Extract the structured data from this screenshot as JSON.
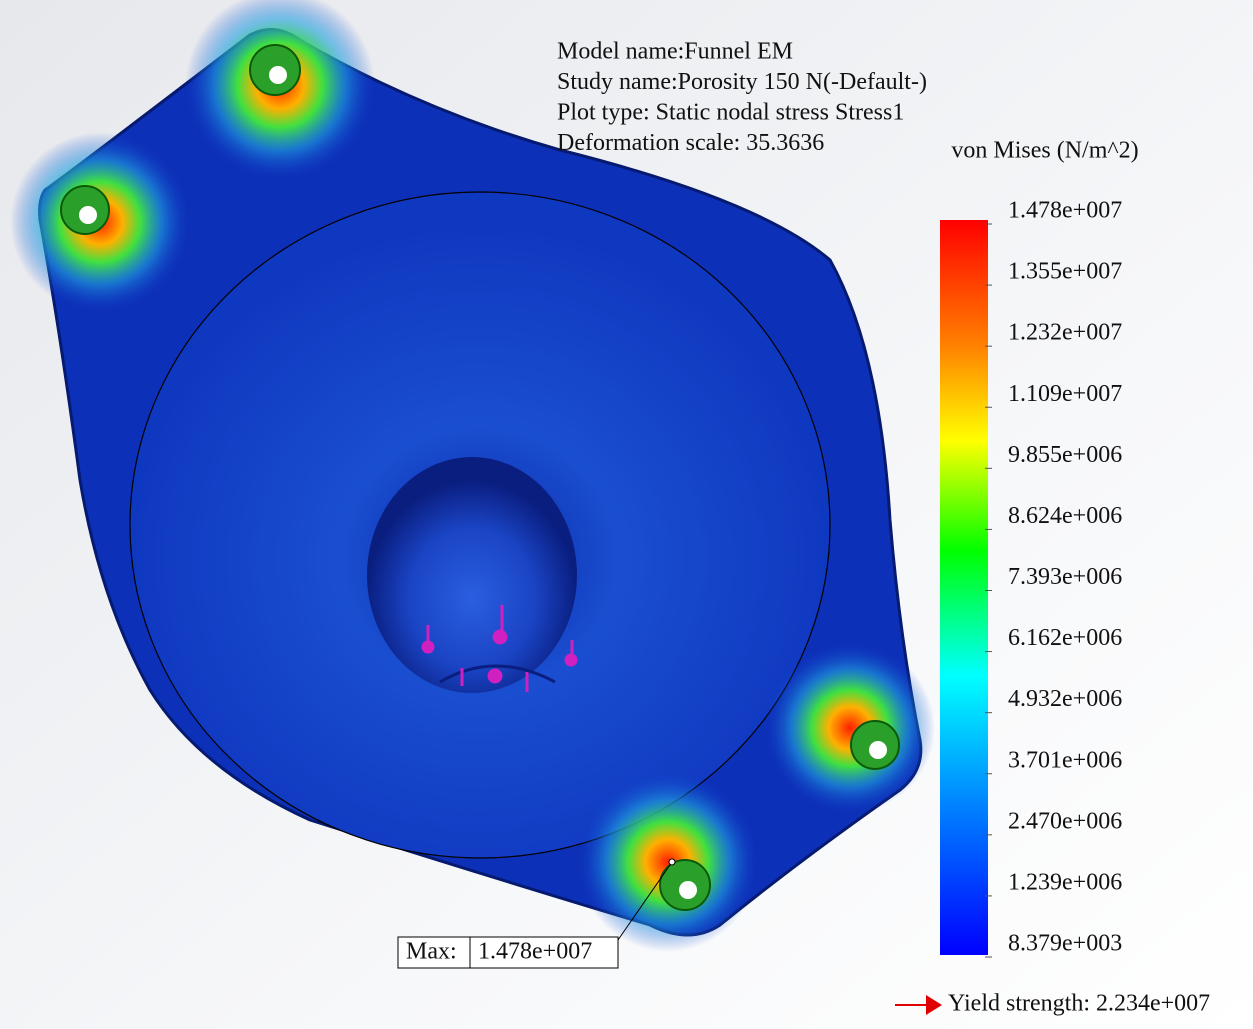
{
  "info": [
    "Model name:Funnel EM",
    "Study name:Porosity 150 N(-Default-)",
    "Plot type: Static nodal stress Stress1",
    "Deformation scale: 35.3636"
  ],
  "legend": {
    "title": "von Mises (N/m^2)",
    "labels": [
      "1.478e+007",
      "1.355e+007",
      "1.232e+007",
      "1.109e+007",
      "9.855e+006",
      "8.624e+006",
      "7.393e+006",
      "6.162e+006",
      "4.932e+006",
      "3.701e+006",
      "2.470e+006",
      "1.239e+006",
      "8.379e+003"
    ]
  },
  "max_probe": {
    "label": "Max:",
    "value": "1.478e+007"
  },
  "yield": "Yield strength: 2.234e+007"
}
